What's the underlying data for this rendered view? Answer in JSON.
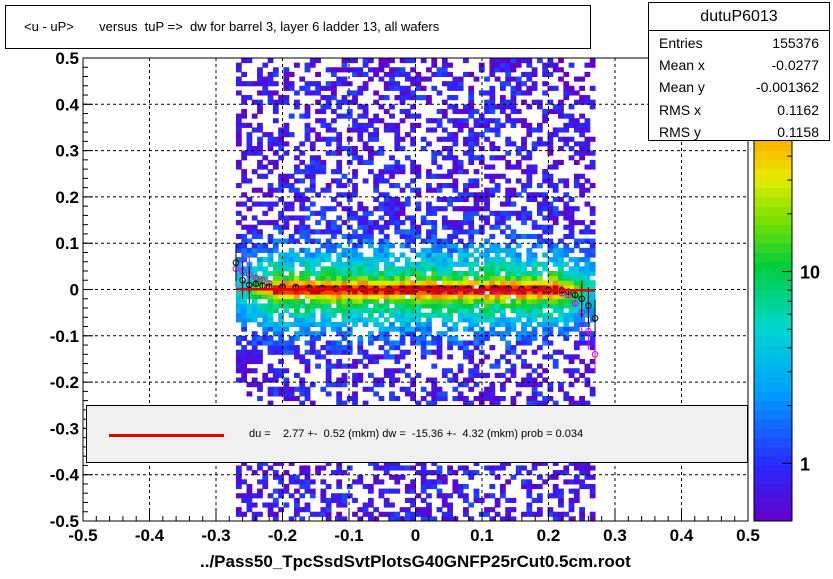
{
  "header": {
    "title": "<u - uP>       versus  tuP =>  dw for barrel 3, layer 6 ladder 13, all wafers"
  },
  "stats": {
    "name": "dutuP6013",
    "rows": [
      {
        "key": "Entries",
        "value": "155376"
      },
      {
        "key": "Mean x",
        "value": "-0.0277"
      },
      {
        "key": "Mean y",
        "value": "-0.001362"
      },
      {
        "key": "RMS x",
        "value": "0.1162"
      },
      {
        "key": "RMS y",
        "value": "0.1158"
      }
    ]
  },
  "legend": {
    "text": "du =    2.77 +-  0.52 (mkm) dw =  -15.36 +-  4.32 (mkm) prob = 0.034",
    "line_color": "#e00000"
  },
  "footer": {
    "filename": "../Pass50_TpcSsdSvtPlotsG40GNFP25rCut0.5cm.root"
  },
  "chart_data": {
    "type": "heatmap",
    "xlim": [
      -0.5,
      0.5
    ],
    "ylim": [
      -0.5,
      0.5
    ],
    "x_ticks": [
      -0.5,
      -0.4,
      -0.3,
      -0.2,
      -0.1,
      0,
      0.1,
      0.2,
      0.3,
      0.4,
      0.5
    ],
    "x_tick_labels": [
      "-0.5",
      "-0.4",
      "-0.3",
      "-0.2",
      "-0.1",
      "0",
      "0.1",
      "0.2",
      "0.3",
      "0.4",
      "0.5"
    ],
    "y_ticks": [
      -0.5,
      -0.4,
      -0.3,
      -0.2,
      -0.1,
      0,
      0.1,
      0.2,
      0.3,
      0.4,
      0.5
    ],
    "y_tick_labels": [
      "-0.5",
      "-0.4",
      "-0.3",
      "-0.2",
      "-0.1",
      "0",
      "0.1",
      "0.2",
      "0.3",
      "0.4",
      "0.5"
    ],
    "grid": true,
    "colorbar": {
      "scale": "log",
      "range": [
        0.5,
        130
      ],
      "tick_values": [
        1,
        10
      ],
      "tick_labels": [
        "1",
        "10"
      ],
      "top_label": "10",
      "top_exponent": "2"
    },
    "occupied_x_range": [
      -0.27,
      0.27
    ],
    "fit_line": {
      "x": [
        -0.27,
        0.27
      ],
      "y": [
        0.0007,
        -0.0018
      ],
      "color": "#e00000"
    },
    "profile_black": {
      "x": [
        -0.27,
        -0.26,
        -0.25,
        -0.24,
        -0.23,
        -0.22,
        -0.2,
        -0.18,
        -0.16,
        -0.14,
        -0.12,
        -0.1,
        -0.08,
        -0.06,
        -0.04,
        -0.02,
        0.0,
        0.02,
        0.04,
        0.06,
        0.08,
        0.1,
        0.12,
        0.14,
        0.16,
        0.18,
        0.2,
        0.22,
        0.23,
        0.24,
        0.25,
        0.26,
        0.27
      ],
      "y": [
        0.058,
        0.02,
        0.01,
        0.012,
        0.008,
        0.006,
        0.005,
        0.004,
        0.003,
        0.003,
        0.002,
        0.002,
        0.002,
        0.001,
        0.001,
        0.001,
        0.001,
        0.001,
        0.002,
        0.002,
        0.002,
        0.003,
        0.003,
        0.002,
        0.001,
        0.0,
        -0.001,
        -0.002,
        -0.005,
        -0.012,
        -0.02,
        -0.035,
        -0.062
      ]
    },
    "profile_magenta": {
      "x": [
        -0.27,
        -0.26,
        -0.25,
        -0.24,
        -0.23,
        -0.22,
        -0.2,
        -0.18,
        -0.16,
        -0.14,
        -0.12,
        -0.1,
        -0.08,
        -0.06,
        -0.04,
        -0.02,
        0.0,
        0.02,
        0.04,
        0.06,
        0.08,
        0.1,
        0.12,
        0.14,
        0.16,
        0.18,
        0.2,
        0.22,
        0.23,
        0.24,
        0.25,
        0.26,
        0.27
      ],
      "y": [
        0.045,
        0.04,
        0.032,
        0.025,
        0.02,
        0.013,
        0.008,
        0.006,
        0.004,
        0.003,
        0.002,
        0.001,
        0.001,
        0.0,
        0.0,
        -0.001,
        -0.001,
        -0.001,
        -0.001,
        -0.002,
        -0.003,
        -0.004,
        -0.003,
        -0.002,
        -0.002,
        -0.003,
        -0.004,
        -0.008,
        -0.012,
        -0.03,
        -0.05,
        -0.09,
        -0.14
      ]
    }
  }
}
